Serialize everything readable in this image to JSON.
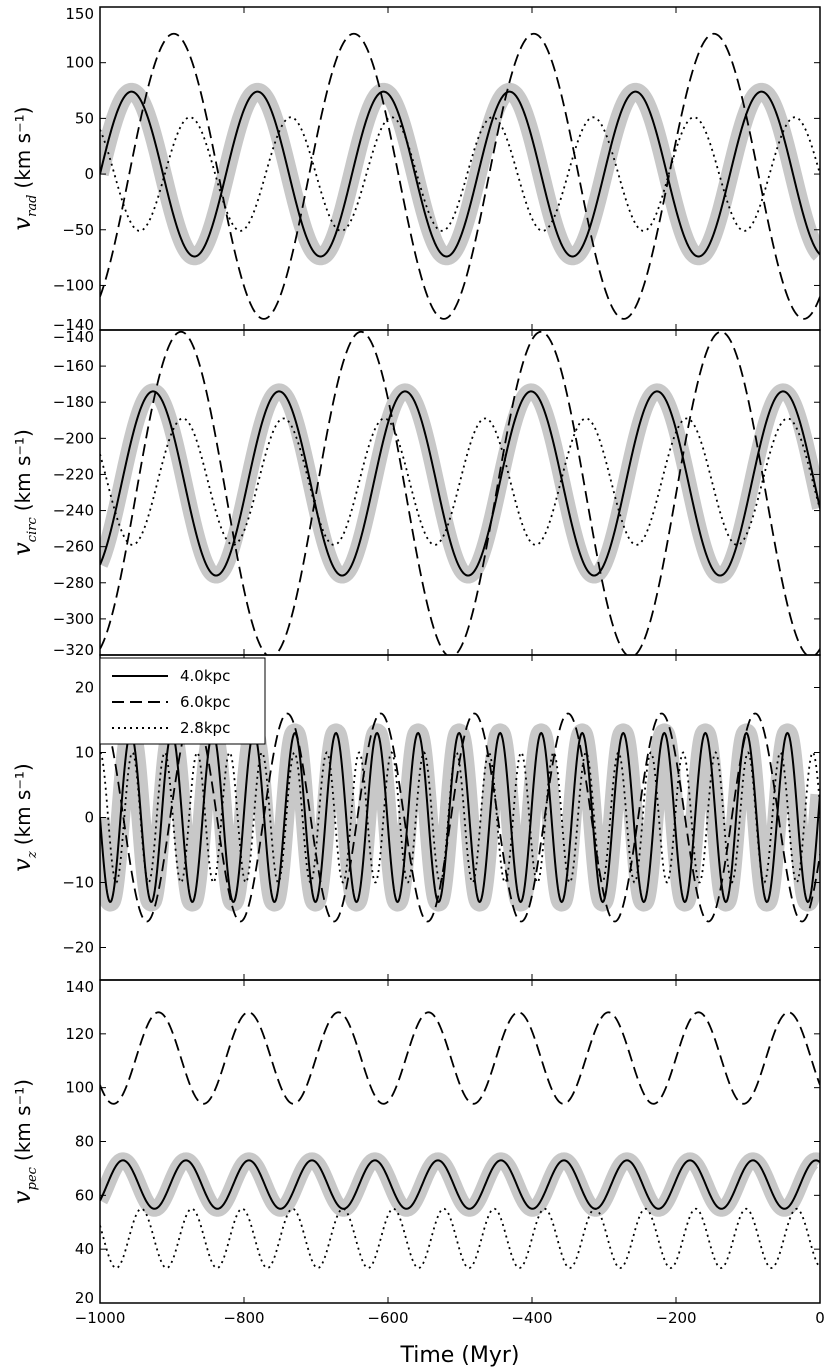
{
  "figure": {
    "xlabel": "Time (Myr)",
    "x_tick_labels": [
      "−1000",
      "−800",
      "−600",
      "−400",
      "−200",
      "0"
    ],
    "legend": [
      {
        "label": "4.0kpc",
        "dash": "solid"
      },
      {
        "label": "6.0kpc",
        "dash": "dashed"
      },
      {
        "label": "2.8kpc",
        "dash": "dotted"
      }
    ],
    "colors": {
      "line": "#000000",
      "band": "#c8c8c8",
      "axes": "#000000",
      "background": "#ffffff"
    }
  },
  "chart_data": [
    {
      "type": "line",
      "panel": "rad",
      "ylabel_symbol": "v",
      "ylabel_sub": "rad",
      "ylabel_unit": "(km s⁻¹)",
      "xlim": [
        -1000,
        0
      ],
      "ylim": [
        -140,
        150
      ],
      "y_ticks": [
        -140,
        -100,
        -50,
        0,
        50,
        100,
        150
      ],
      "y_tick_labels": [
        "−140",
        "−100",
        "−50",
        "0",
        "50",
        "100",
        "150"
      ],
      "series": [
        {
          "name": "4.0kpc",
          "style": "solid",
          "mean": 0,
          "amp": 74,
          "period": 175,
          "t0": -1000,
          "phase0": 0.25
        },
        {
          "name": "6.0kpc",
          "style": "dashed",
          "mean": -2,
          "amp": 128,
          "period": 250,
          "t0": -960,
          "phase0": 0.25
        },
        {
          "name": "2.8kpc",
          "style": "dotted",
          "mean": 0,
          "amp": 51,
          "period": 140,
          "t0": -910,
          "phase0": 0.25
        }
      ],
      "band": {
        "mean": 0,
        "amp": 74,
        "period": 175,
        "t0": -1000,
        "phase0": 0.25,
        "width": 11
      }
    },
    {
      "type": "line",
      "panel": "circ",
      "ylabel_symbol": "v",
      "ylabel_sub": "circ",
      "ylabel_unit": "(km s⁻¹)",
      "xlim": [
        -1000,
        0
      ],
      "ylim": [
        -320,
        -140
      ],
      "y_ticks": [
        -320,
        -300,
        -280,
        -260,
        -240,
        -220,
        -200,
        -180,
        -160,
        -140
      ],
      "y_tick_labels": [
        "−320",
        "−300",
        "−280",
        "−260",
        "−240",
        "−220",
        "−200",
        "−180",
        "−160",
        "−140"
      ],
      "series": [
        {
          "name": "4.0kpc",
          "style": "solid",
          "mean": -225,
          "amp": 51,
          "period": 175,
          "t0": -970,
          "phase0": 0.25
        },
        {
          "name": "6.0kpc",
          "style": "dashed",
          "mean": -231,
          "amp": 90,
          "period": 250,
          "t0": -950,
          "phase0": 0.25
        },
        {
          "name": "2.8kpc",
          "style": "dotted",
          "mean": -224,
          "amp": 35,
          "period": 140,
          "t0": -920,
          "phase0": 0.25
        }
      ],
      "band": {
        "mean": -225,
        "amp": 51,
        "period": 175,
        "t0": -970,
        "phase0": 0.25,
        "width": 10
      }
    },
    {
      "type": "line",
      "panel": "z",
      "ylabel_symbol": "v",
      "ylabel_sub": "z",
      "ylabel_unit": "(km s⁻¹)",
      "xlim": [
        -1000,
        0
      ],
      "ylim": [
        -25,
        25
      ],
      "y_ticks": [
        -20,
        -10,
        0,
        10,
        20
      ],
      "y_tick_labels": [
        "−20",
        "−10",
        "0",
        "10",
        "20"
      ],
      "series": [
        {
          "name": "4.0kpc",
          "style": "solid",
          "mean": 0,
          "amp": 13,
          "period": 57,
          "t0": -1000,
          "phase0": 0.75
        },
        {
          "name": "6.0kpc",
          "style": "dashed",
          "mean": 0,
          "amp": 16,
          "period": 130,
          "t0": -1000,
          "phase0": 0.0
        },
        {
          "name": "2.8kpc",
          "style": "dotted",
          "mean": 0,
          "amp": 10,
          "period": 45,
          "t0": -1000,
          "phase0": 0.0
        }
      ],
      "band": {
        "mean": 0,
        "amp": 13,
        "period": 57,
        "t0": -1000,
        "phase0": 0.75,
        "width": 12
      }
    },
    {
      "type": "line",
      "panel": "pec",
      "ylabel_symbol": "v",
      "ylabel_sub": "pec",
      "ylabel_unit": "(km s⁻¹)",
      "xlim": [
        -1000,
        0
      ],
      "ylim": [
        20,
        140
      ],
      "y_ticks": [
        20,
        40,
        60,
        80,
        100,
        120,
        140
      ],
      "y_tick_labels": [
        "20",
        "40",
        "60",
        "80",
        "100",
        "120",
        "140"
      ],
      "series": [
        {
          "name": "4.0kpc",
          "style": "solid",
          "mean": 64,
          "amp": 9,
          "period": 87.5,
          "t0": -990,
          "phase0": 0.25
        },
        {
          "name": "6.0kpc",
          "style": "dashed",
          "mean": 111,
          "amp": 17,
          "period": 125,
          "t0": -950,
          "phase0": 0.25
        },
        {
          "name": "2.8kpc",
          "style": "dotted",
          "mean": 44,
          "amp": 11,
          "period": 70,
          "t0": -960,
          "phase0": 0.25
        }
      ],
      "band": {
        "mean": 64,
        "amp": 9,
        "period": 87.5,
        "t0": -990,
        "phase0": 0.25,
        "width": 10
      }
    }
  ]
}
